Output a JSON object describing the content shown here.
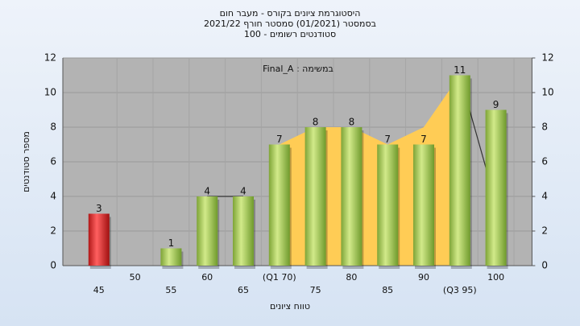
{
  "chart_data": {
    "type": "bar",
    "title": "היסטוגרמת ציונים בקורס - מעבר חום",
    "subtitle": [
      "בסמסטר (01/2021) סמסטר חורף 2021/22",
      "סטודנטים רשומים - 100"
    ],
    "annotation": "במשימה : Final_A",
    "x_label": "טווח ציונים",
    "y_label": "מספר סטודנטים",
    "categories": [
      "45",
      "50",
      "55",
      "60",
      "65",
      "(Q1 70)",
      "75",
      "80",
      "85",
      "90",
      "(Q3 95)",
      "100"
    ],
    "values": [
      3,
      0,
      1,
      4,
      4,
      7,
      8,
      8,
      7,
      7,
      11,
      9
    ],
    "colors": [
      "red",
      "green",
      "green",
      "green",
      "green",
      "green",
      "green",
      "green",
      "green",
      "green",
      "green",
      "green"
    ],
    "area_values": [
      null,
      null,
      null,
      null,
      null,
      7,
      8,
      8,
      7,
      8,
      11,
      null
    ],
    "area_color": "#ffcc55",
    "line_values": [
      null,
      null,
      null,
      4,
      4,
      null,
      null,
      null,
      null,
      null,
      11,
      3.6
    ],
    "line_color": "#333333",
    "ylim": [
      0,
      12
    ],
    "yticks": [
      0,
      2,
      4,
      6,
      8,
      10,
      12
    ],
    "y2lim": [
      0,
      12
    ],
    "y2ticks": [
      0,
      2,
      4,
      6,
      8,
      10,
      12
    ],
    "grid": true
  }
}
